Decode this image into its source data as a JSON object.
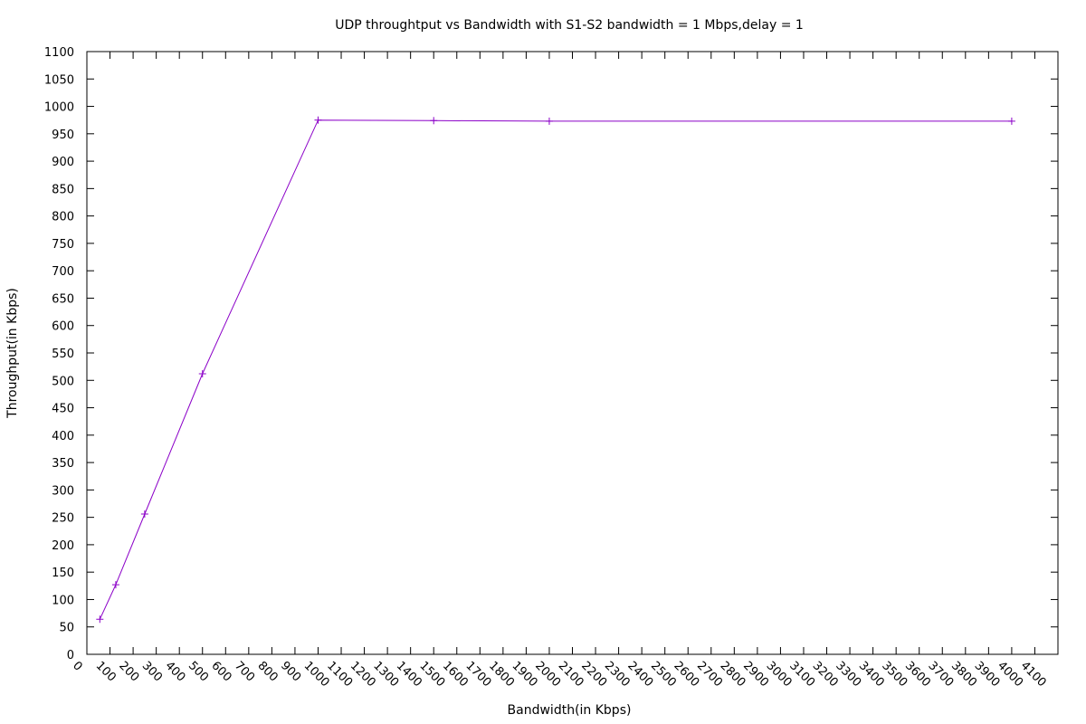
{
  "chart_data": {
    "type": "line",
    "title": "UDP throughtput vs Bandwidth with S1-S2 bandwidth = 1 Mbps,delay = 1",
    "xlabel": "Bandwidth(in Kbps)",
    "ylabel": "Throughput(in Kbps)",
    "xlim": [
      0,
      4200
    ],
    "ylim": [
      0,
      1100
    ],
    "xticks": [
      0,
      100,
      200,
      300,
      400,
      500,
      600,
      700,
      800,
      900,
      1000,
      1100,
      1200,
      1300,
      1400,
      1500,
      1600,
      1700,
      1800,
      1900,
      2000,
      2100,
      2200,
      2300,
      2400,
      2500,
      2600,
      2700,
      2800,
      2900,
      3000,
      3100,
      3200,
      3300,
      3400,
      3500,
      3600,
      3700,
      3800,
      3900,
      4000,
      4100
    ],
    "yticks": [
      0,
      50,
      100,
      150,
      200,
      250,
      300,
      350,
      400,
      450,
      500,
      550,
      600,
      650,
      700,
      750,
      800,
      850,
      900,
      950,
      1000,
      1050,
      1100
    ],
    "grid": false,
    "legend": "none",
    "series": [
      {
        "color": "#8b00c8",
        "x": [
          56,
          125,
          250,
          500,
          1000,
          1500,
          2000,
          4000
        ],
        "y": [
          64,
          127,
          256,
          512,
          975,
          974,
          973,
          973
        ]
      }
    ]
  }
}
